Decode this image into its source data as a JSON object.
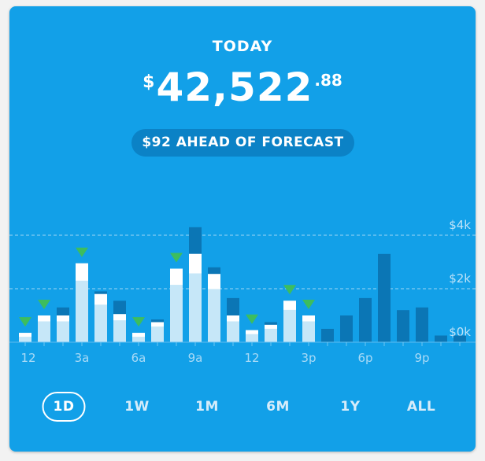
{
  "header": {
    "title": "TODAY",
    "currency": "$",
    "amount_main": "42,522",
    "amount_cents": ".88",
    "forecast_label": "$92 AHEAD OF FORECAST"
  },
  "colors": {
    "card_bg": "#12a0e8",
    "bar_light": "#c6e7f8",
    "bar_white": "#ffffff",
    "bar_dark": "#0b76b5",
    "triangle": "#3dbd5e",
    "gridline": "#9fd6f5"
  },
  "chart_data": {
    "type": "bar",
    "ylim": [
      0,
      4300
    ],
    "y_ticks": [
      {
        "label": "$0k",
        "value": 0
      },
      {
        "label": "$2k",
        "value": 2000
      },
      {
        "label": "$4k",
        "value": 4000
      }
    ],
    "x_tick_labels": [
      "12",
      "3a",
      "6a",
      "9a",
      "12",
      "3p",
      "6p",
      "9p"
    ],
    "series": [
      {
        "name": "",
        "values": [
          350,
          1000,
          1000,
          2950,
          1800,
          1050,
          350,
          750,
          2750,
          3300,
          2550,
          1000,
          450,
          650,
          1550,
          1000
        ]
      },
      {
        "name": "",
        "values": [
          350,
          1000,
          1300,
          2950,
          1900,
          1550,
          350,
          850,
          2750,
          4300,
          2800,
          1650,
          450,
          750,
          1550,
          1000,
          500,
          1000,
          1650,
          3300,
          1200,
          1300,
          250,
          250
        ]
      }
    ],
    "ahead_markers": [
      0,
      1,
      3,
      6,
      8,
      12,
      14,
      15
    ]
  },
  "periods": [
    {
      "label": "1D",
      "active": true
    },
    {
      "label": "1W",
      "active": false
    },
    {
      "label": "1M",
      "active": false
    },
    {
      "label": "6M",
      "active": false
    },
    {
      "label": "1Y",
      "active": false
    },
    {
      "label": "ALL",
      "active": false
    }
  ]
}
